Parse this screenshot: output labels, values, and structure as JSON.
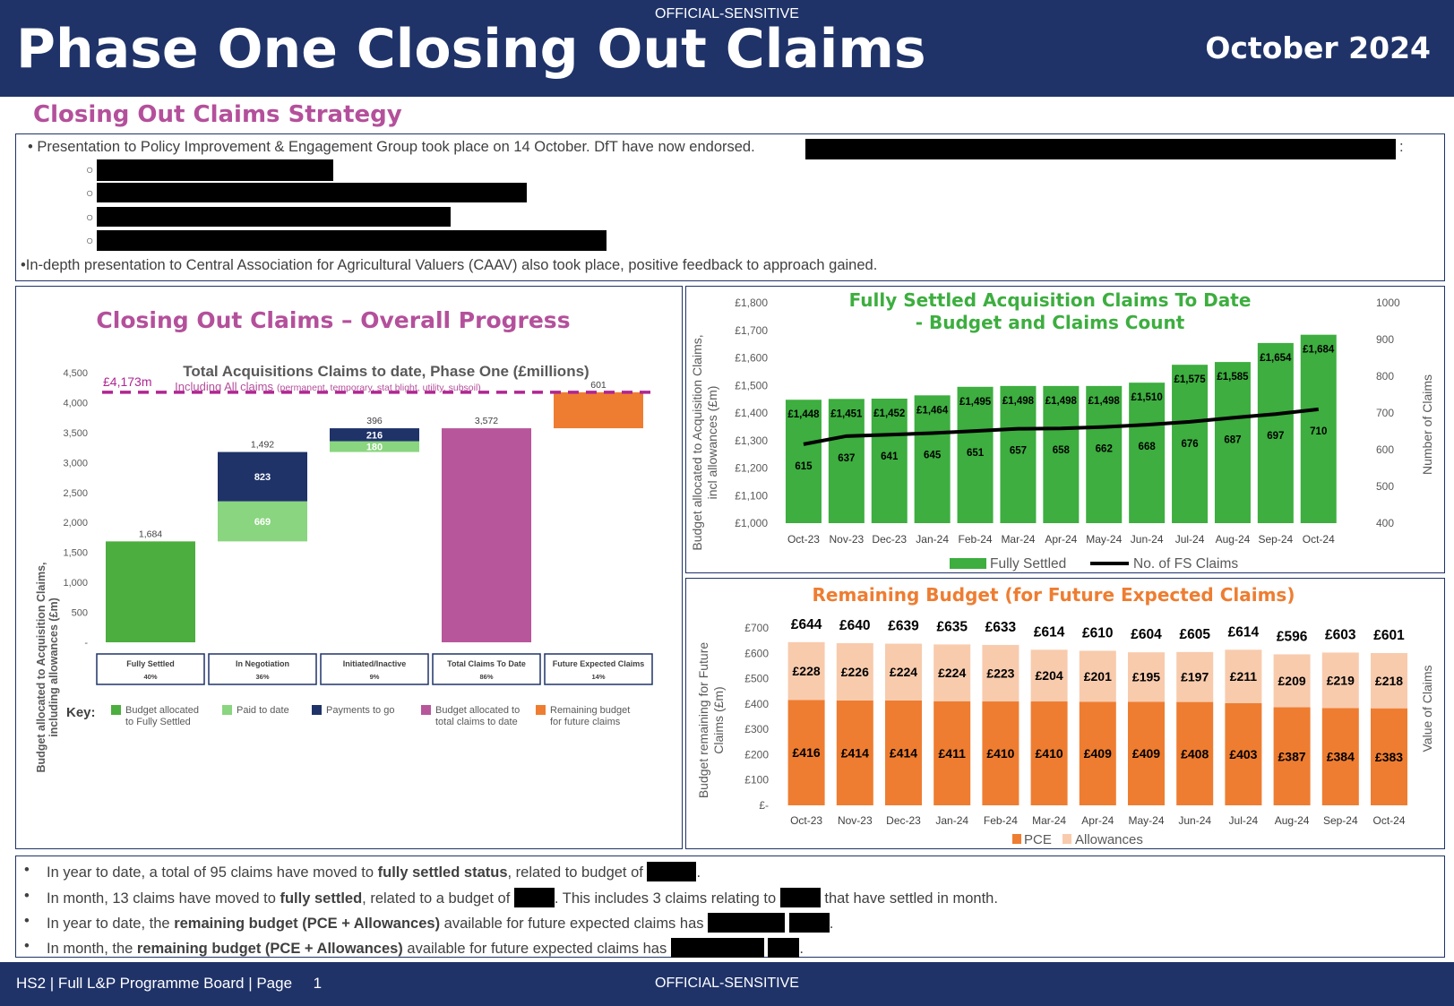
{
  "header": {
    "classification": "OFFICIAL-SENSITIVE",
    "title": "Phase One Closing Out Claims",
    "month": "October 2024"
  },
  "strategy": {
    "title": "Closing Out Claims Strategy",
    "line1": "• Presentation to Policy Improvement & Engagement Group took place on 14 October.  DfT have now endorsed.",
    "line1_end": ":",
    "sub_bullet": "○",
    "line2": "•In-depth presentation to Central Association for Agricultural Valuers (CAAV) also took place, positive feedback to approach gained."
  },
  "waterfall": {
    "panel_title": "Closing Out Claims – Overall Progress",
    "chart_title": "Total Acquisitions Claims to date, Phase One (£millions)",
    "subtitle_main": "Including All claims",
    "subtitle_detail": "(permanent, temporary, stat blight, utility, subsoil)",
    "ylabel_line1": "Budget allocated to Acquisition Claims,",
    "ylabel_line2": "including allowances (£m)",
    "total_line_label": "£4,173m",
    "key_label": "Key:",
    "colors": {
      "green": "#4cae3e",
      "light_green": "#8ad57f",
      "navy": "#1f3369",
      "pink": "#b8569b",
      "orange": "#ee7d31",
      "dashed": "#b02591"
    },
    "key": [
      {
        "line1": "Budget allocated",
        "line2": "to Fully Settled",
        "color": "#4cae3e"
      },
      {
        "line1": "Paid to date",
        "line2": "",
        "color": "#8ad57f"
      },
      {
        "line1": "Payments to go",
        "line2": "",
        "color": "#1f3369"
      },
      {
        "line1": "Budget allocated to",
        "line2": "total claims to date",
        "color": "#b8569b"
      },
      {
        "line1": "Remaining budget",
        "line2": "for future claims",
        "color": "#ee7d31"
      }
    ]
  },
  "settled": {
    "title_line1": "Fully Settled Acquisition Claims To Date",
    "title_line2": "- Budget and Claims Count",
    "ylabel_line1": "Budget allocated to Acquisition Claims,",
    "ylabel_line2": "incl allowances (£m)",
    "y2label": "Number of Claims",
    "legend_bar": "Fully Settled",
    "legend_line": "No. of FS Claims"
  },
  "remaining": {
    "title": "Remaining Budget (for Future Expected Claims)",
    "ylabel_line1": "Budget remaining for Future",
    "ylabel_line2": "Claims (£m)",
    "y2label": "Value of Claims",
    "legend_pce": "PCE",
    "legend_allow": "Allowances"
  },
  "bottom": {
    "b1_pre": "In year to date, a total of 95 claims have moved to ",
    "b1_bold": "fully settled status",
    "b1_post": ", related to budget of",
    "b1_end": ".",
    "b2_pre": "In month, 13 claims have moved to ",
    "b2_bold": "fully settled",
    "b2_mid": ", related to a budget of",
    "b2_mid2": ". This includes 3 claims relating to",
    "b2_post": "that have settled in month.",
    "b3_pre": "In year to date, the ",
    "b3_bold": "remaining budget (PCE + Allowances)",
    "b3_post": " available for future expected claims has",
    "b3_end": ".",
    "b4_pre": "In month, the ",
    "b4_bold": "remaining budget (PCE + Allowances)",
    "b4_post": " available for future expected claims has",
    "b4_end": ".",
    "bullet": "•"
  },
  "footer": {
    "left": "HS2 | Full L&P Programme Board | Page     1",
    "center": "OFFICIAL-SENSITIVE"
  },
  "chart_data": [
    {
      "type": "bar",
      "title": "Total Acquisitions Claims to date, Phase One (£millions)",
      "ylabel": "Budget allocated to Acquisition Claims, including allowances (£m)",
      "ylim": [
        0,
        4500
      ],
      "yticks": [
        "-",
        "500",
        "1,000",
        "1,500",
        "2,000",
        "2,500",
        "3,000",
        "3,500",
        "4,000",
        "4,500"
      ],
      "yticks_values": [
        0,
        500,
        1000,
        1500,
        2000,
        2500,
        3000,
        3500,
        4000,
        4500
      ],
      "reference_line": {
        "label": "£4,173m",
        "value": 4173
      },
      "categories": [
        {
          "name": "Fully Settled",
          "pct": "40%"
        },
        {
          "name": "In Negotiation",
          "pct": "36%"
        },
        {
          "name": "Initiated/Inactive",
          "pct": "9%"
        },
        {
          "name": "Total Claims To Date",
          "pct": "86%"
        },
        {
          "name": "Future Expected Claims",
          "pct": "14%"
        }
      ],
      "bars": [
        {
          "segments": [
            {
              "base": 0,
              "value": 1684,
              "color": "#4cae3e",
              "label": ""
            }
          ],
          "total_label": "1,684"
        },
        {
          "segments": [
            {
              "base": 1684,
              "value": 669,
              "color": "#8ad57f",
              "label": "669"
            },
            {
              "base": 2353,
              "value": 823,
              "color": "#1f3369",
              "label": "823"
            }
          ],
          "total_label": "1,492"
        },
        {
          "segments": [
            {
              "base": 3176,
              "value": 180,
              "color": "#8ad57f",
              "label": "180"
            },
            {
              "base": 3356,
              "value": 216,
              "color": "#1f3369",
              "label": "216"
            }
          ],
          "total_label": "396"
        },
        {
          "segments": [
            {
              "base": 0,
              "value": 3572,
              "color": "#b8569b",
              "label": ""
            }
          ],
          "total_label": "3,572"
        },
        {
          "segments": [
            {
              "base": 3572,
              "value": 601,
              "color": "#ee7d31",
              "label": ""
            }
          ],
          "total_label": "601"
        }
      ]
    },
    {
      "type": "bar",
      "title": "Fully Settled Acquisition Claims To Date - Budget and Claims Count",
      "categories": [
        "Oct-23",
        "Nov-23",
        "Dec-23",
        "Jan-24",
        "Feb-24",
        "Mar-24",
        "Apr-24",
        "May-24",
        "Jun-24",
        "Jul-24",
        "Aug-24",
        "Sep-24",
        "Oct-24"
      ],
      "ylim": [
        1000,
        1800
      ],
      "yticks": [
        "£1,000",
        "£1,100",
        "£1,200",
        "£1,300",
        "£1,400",
        "£1,500",
        "£1,600",
        "£1,700",
        "£1,800"
      ],
      "yticks_values": [
        1000,
        1100,
        1200,
        1300,
        1400,
        1500,
        1600,
        1700,
        1800
      ],
      "y2lim": [
        400,
        1000
      ],
      "y2ticks": [
        "400",
        "500",
        "600",
        "700",
        "800",
        "900",
        "1000"
      ],
      "y2ticks_values": [
        400,
        500,
        600,
        700,
        800,
        900,
        1000
      ],
      "bar_color": "#3dae3f",
      "series": [
        {
          "name": "Fully Settled",
          "values": [
            1448,
            1451,
            1452,
            1464,
            1495,
            1498,
            1498,
            1498,
            1510,
            1575,
            1585,
            1654,
            1684
          ],
          "labels": [
            "£1,448",
            "£1,451",
            "£1,452",
            "£1,464",
            "£1,495",
            "£1,498",
            "£1,498",
            "£1,498",
            "£1,510",
            "£1,575",
            "£1,585",
            "£1,654",
            "£1,684"
          ]
        },
        {
          "name": "No. of FS Claims",
          "axis": "right",
          "values": [
            615,
            637,
            641,
            645,
            651,
            657,
            658,
            662,
            668,
            676,
            687,
            697,
            710
          ],
          "labels": [
            "615",
            "637",
            "641",
            "645",
            "651",
            "657",
            "658",
            "662",
            "668",
            "676",
            "687",
            "697",
            "710"
          ]
        }
      ]
    },
    {
      "type": "bar",
      "stacked": true,
      "title": "Remaining Budget (for Future Expected Claims)",
      "categories": [
        "Oct-23",
        "Nov-23",
        "Dec-23",
        "Jan-24",
        "Feb-24",
        "Mar-24",
        "Apr-24",
        "May-24",
        "Jun-24",
        "Jul-24",
        "Aug-24",
        "Sep-24",
        "Oct-24"
      ],
      "ylim": [
        0,
        700
      ],
      "yticks": [
        "£-",
        "£100",
        "£200",
        "£300",
        "£400",
        "£500",
        "£600",
        "£700"
      ],
      "yticks_values": [
        0,
        100,
        200,
        300,
        400,
        500,
        600,
        700
      ],
      "colors": {
        "PCE": "#ee7d31",
        "Allowances": "#f8cbad"
      },
      "series": [
        {
          "name": "PCE",
          "values": [
            416,
            414,
            414,
            411,
            410,
            410,
            409,
            409,
            408,
            403,
            387,
            384,
            383
          ],
          "labels": [
            "£416",
            "£414",
            "£414",
            "£411",
            "£410",
            "£410",
            "£409",
            "£409",
            "£408",
            "£403",
            "£387",
            "£384",
            "£383"
          ]
        },
        {
          "name": "Allowances",
          "values": [
            228,
            226,
            224,
            224,
            223,
            204,
            201,
            195,
            197,
            211,
            209,
            219,
            218
          ],
          "labels": [
            "£228",
            "£226",
            "£224",
            "£224",
            "£223",
            "£204",
            "£201",
            "£195",
            "£197",
            "£211",
            "£209",
            "£219",
            "£218"
          ]
        }
      ],
      "totals": [
        644,
        640,
        639,
        635,
        633,
        614,
        610,
        604,
        605,
        614,
        596,
        603,
        601
      ],
      "total_labels": [
        "£644",
        "£640",
        "£639",
        "£635",
        "£633",
        "£614",
        "£610",
        "£604",
        "£605",
        "£614",
        "£596",
        "£603",
        "£601"
      ]
    }
  ]
}
